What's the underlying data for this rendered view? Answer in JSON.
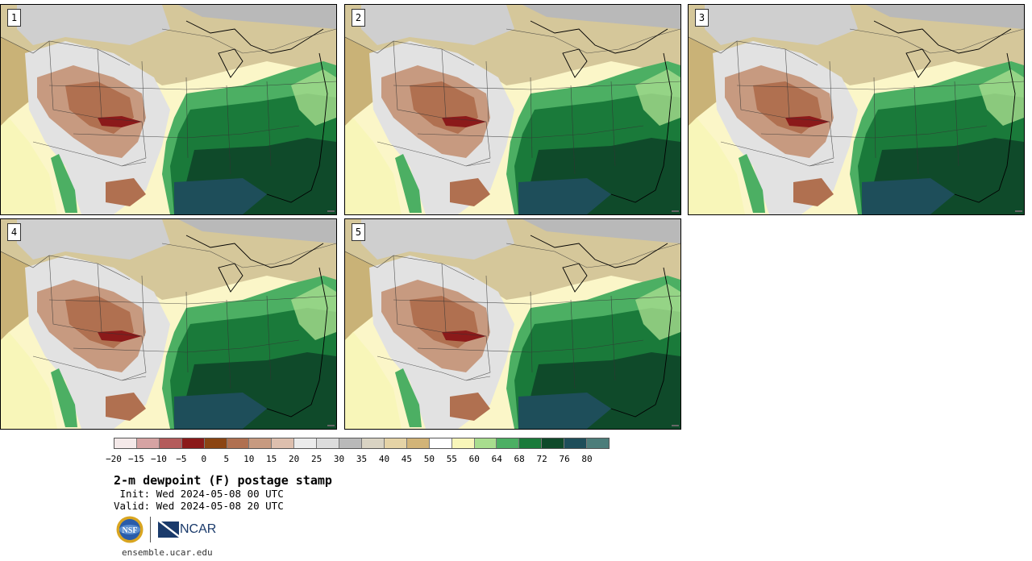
{
  "panels": [
    {
      "label": "1"
    },
    {
      "label": "2"
    },
    {
      "label": "3"
    },
    {
      "label": "4"
    },
    {
      "label": "5"
    }
  ],
  "colorbar": {
    "colors": [
      "#f4e9e9",
      "#d6a3a3",
      "#b45b5b",
      "#8b1a1a",
      "#8b4513",
      "#b07050",
      "#c79a80",
      "#ddbfae",
      "#ebebeb",
      "#dcdcdc",
      "#b9b9b9",
      "#d9d3c3",
      "#e5d3a6",
      "#d2b478",
      "#ffffff",
      "#f8f6b9",
      "#a8dd8e",
      "#4caf63",
      "#1a7a3a",
      "#0f4a2a",
      "#1e4e5a",
      "#4c7d7a"
    ],
    "ticks": [
      "−20",
      "−15",
      "−10",
      "−5",
      "0",
      "5",
      "10",
      "15",
      "20",
      "25",
      "30",
      "35",
      "40",
      "45",
      "50",
      "55",
      "60",
      "64",
      "68",
      "72",
      "76",
      "80"
    ]
  },
  "title": "2-m dewpoint (F) postage stamp",
  "init_text": " Init: Wed 2024-05-08 00 UTC",
  "valid_text": "Valid: Wed 2024-05-08 20 UTC",
  "logos": {
    "nsf": "NSF",
    "ncar": "NCAR"
  },
  "site": "ensemble.ucar.edu"
}
